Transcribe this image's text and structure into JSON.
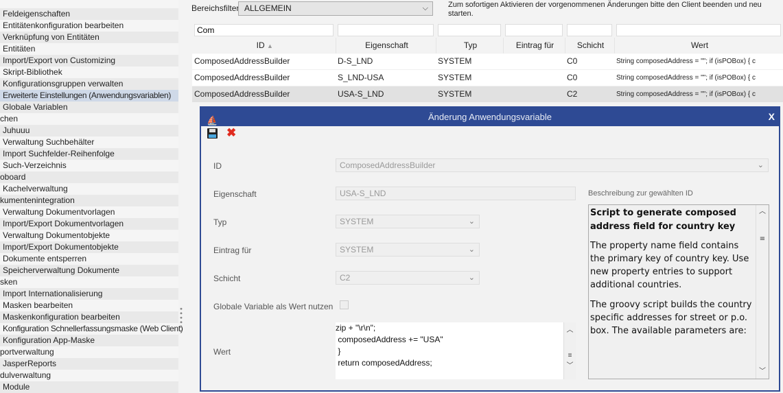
{
  "sidebar": {
    "items": [
      {
        "label": "Feldeigenschaften",
        "group": false
      },
      {
        "label": "Entitätenkonfiguration bearbeiten",
        "group": false
      },
      {
        "label": "Verknüpfung von Entitäten",
        "group": false
      },
      {
        "label": "Entitäten",
        "group": false
      },
      {
        "label": "Import/Export von Customizing",
        "group": false
      },
      {
        "label": "Skript-Bibliothek",
        "group": false
      },
      {
        "label": "Konfigurationsgruppen verwalten",
        "group": false
      },
      {
        "label": "Erweiterte Einstellungen (Anwendungsvariablen)",
        "group": false,
        "selected": true
      },
      {
        "label": "Globale Variablen",
        "group": false
      },
      {
        "label": "chen",
        "group": true
      },
      {
        "label": "Juhuuu",
        "group": false
      },
      {
        "label": "Verwaltung Suchbehälter",
        "group": false
      },
      {
        "label": "Import Suchfelder-Reihenfolge",
        "group": false
      },
      {
        "label": "Such-Verzeichnis",
        "group": false
      },
      {
        "label": "oboard",
        "group": true
      },
      {
        "label": "Kachelverwaltung",
        "group": false
      },
      {
        "label": "kumentenintegration",
        "group": true
      },
      {
        "label": "Verwaltung Dokumentvorlagen",
        "group": false
      },
      {
        "label": "Import/Export Dokumentvorlagen",
        "group": false
      },
      {
        "label": "Verwaltung Dokumentobjekte",
        "group": false
      },
      {
        "label": "Import/Export Dokumentobjekte",
        "group": false
      },
      {
        "label": "Dokumente entsperren",
        "group": false
      },
      {
        "label": "Speicherverwaltung Dokumente",
        "group": false
      },
      {
        "label": "sken",
        "group": true
      },
      {
        "label": "Import Internationalisierung",
        "group": false
      },
      {
        "label": "Masken bearbeiten",
        "group": false
      },
      {
        "label": "Maskenkonfiguration bearbeiten",
        "group": false
      },
      {
        "label": "Konfiguration Schnellerfassungsmaske (Web Client)",
        "group": false
      },
      {
        "label": "Konfiguration App-Maske",
        "group": false
      },
      {
        "label": "portverwaltung",
        "group": true
      },
      {
        "label": "JasperReports",
        "group": false
      },
      {
        "label": "dulverwaltung",
        "group": true
      },
      {
        "label": "Module",
        "group": false
      }
    ]
  },
  "toolbar": {
    "filter_label": "Bereichsfilter",
    "filter_value": "ALLGEMEIN",
    "notice": "Zum sofortigen Aktivieren der vorgenommenen Änderungen bitte den Client beenden und neu starten."
  },
  "table": {
    "filters": [
      "Com",
      "",
      "",
      "",
      "",
      ""
    ],
    "columns": [
      "ID",
      "Eigenschaft",
      "Typ",
      "Eintrag für",
      "Schicht",
      "Wert"
    ],
    "sort": {
      "column": "ID",
      "direction": "asc"
    },
    "rows": [
      [
        "ComposedAddressBuilder",
        "D-S_LND",
        "SYSTEM",
        "",
        "C0",
        "String composedAddress = \"\"; if (isPOBox) {  c"
      ],
      [
        "ComposedAddressBuilder",
        "S_LND-USA",
        "SYSTEM",
        "",
        "C0",
        "String composedAddress = \"\"; if (isPOBox) {  c"
      ],
      [
        "ComposedAddressBuilder",
        "USA-S_LND",
        "SYSTEM",
        "",
        "C2",
        "String composedAddress = \"\"; if (isPOBox) {  c"
      ]
    ],
    "selected_row": 2
  },
  "dialog": {
    "title": "Änderung Anwendungsvariable",
    "close": "X",
    "labels": {
      "id": "ID",
      "eigenschaft": "Eigenschaft",
      "typ": "Typ",
      "eintrag": "Eintrag für",
      "schicht": "Schicht",
      "global": "Globale Variable als Wert nutzen",
      "wert": "Wert",
      "desc": "Beschreibung zur gewählten ID"
    },
    "values": {
      "id": "ComposedAddressBuilder",
      "eigenschaft": "USA-S_LND",
      "typ": "SYSTEM",
      "eintrag": "SYSTEM",
      "schicht": "C2",
      "global": false
    },
    "wert": "zip + \"\\r\\n\";\n composedAddress += \"USA\"\n }\n return composedAddress;",
    "desc": {
      "title": "Script to generate composed address field for country key",
      "p1": "The property name field contains the primary key of country key. Use new property entries to support additional countries.",
      "p2": "The groovy script builds the country specific addresses for street or p.o. box. The available parameters are:"
    }
  },
  "colors": {
    "dialog_title": "#2e4a94",
    "selected": "#cfd9e8"
  }
}
